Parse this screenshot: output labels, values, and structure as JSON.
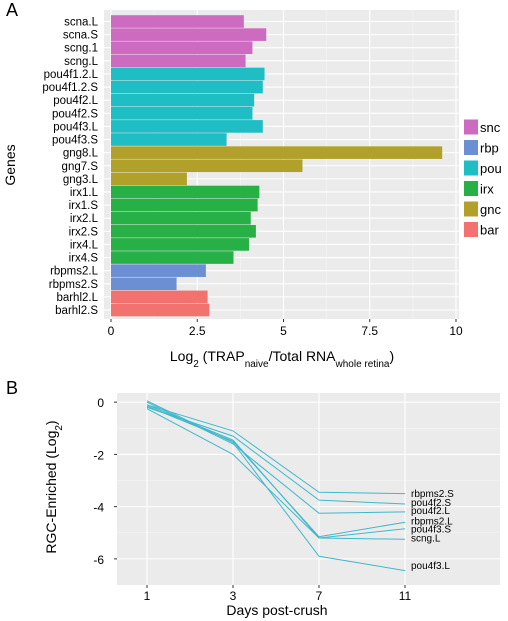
{
  "chart_data": [
    {
      "panel_label": "A",
      "type": "bar",
      "orientation": "horizontal",
      "ylabel": "Genes",
      "xlabel_parts": [
        {
          "text": "Log",
          "role": "normal"
        },
        {
          "text": "2",
          "role": "sub"
        },
        {
          "text": " (TRAP",
          "role": "normal"
        },
        {
          "text": "naive",
          "role": "sub"
        },
        {
          "text": "/Total RNA",
          "role": "normal"
        },
        {
          "text": "whole retina",
          "role": "sub"
        },
        {
          "text": ")",
          "role": "normal"
        }
      ],
      "xlim": [
        0,
        10
      ],
      "xticks": [
        "0",
        "2.5",
        "5",
        "7.5",
        "10"
      ],
      "grid": true,
      "legend_position": "right",
      "groups": [
        {
          "name": "snc",
          "color": "#CC6BC0"
        },
        {
          "name": "rbp",
          "color": "#6C8FD3"
        },
        {
          "name": "pou",
          "color": "#1FBDC4"
        },
        {
          "name": "irx",
          "color": "#27B045"
        },
        {
          "name": "gnc",
          "color": "#B1A12A"
        },
        {
          "name": "bar",
          "color": "#F2726F"
        }
      ],
      "bars": [
        {
          "gene": "scna.L",
          "value": 3.85,
          "group": "snc"
        },
        {
          "gene": "scna.S",
          "value": 4.5,
          "group": "snc"
        },
        {
          "gene": "scng.1",
          "value": 4.1,
          "group": "snc"
        },
        {
          "gene": "scng.L",
          "value": 3.9,
          "group": "snc"
        },
        {
          "gene": "pou4f1.2.L",
          "value": 4.45,
          "group": "pou"
        },
        {
          "gene": "pou4f1.2.S",
          "value": 4.4,
          "group": "pou"
        },
        {
          "gene": "pou4f2.L",
          "value": 4.15,
          "group": "pou"
        },
        {
          "gene": "pou4f2.S",
          "value": 4.1,
          "group": "pou"
        },
        {
          "gene": "pou4f3.L",
          "value": 4.4,
          "group": "pou"
        },
        {
          "gene": "pou4f3.S",
          "value": 3.35,
          "group": "pou"
        },
        {
          "gene": "gng8.L",
          "value": 9.6,
          "group": "gnc"
        },
        {
          "gene": "gng7.S",
          "value": 5.55,
          "group": "gnc"
        },
        {
          "gene": "gng3.L",
          "value": 2.2,
          "group": "gnc"
        },
        {
          "gene": "irx1.L",
          "value": 4.3,
          "group": "irx"
        },
        {
          "gene": "irx1.S",
          "value": 4.25,
          "group": "irx"
        },
        {
          "gene": "irx2.L",
          "value": 4.05,
          "group": "irx"
        },
        {
          "gene": "irx2.S",
          "value": 4.2,
          "group": "irx"
        },
        {
          "gene": "irx4.L",
          "value": 4.0,
          "group": "irx"
        },
        {
          "gene": "irx4.S",
          "value": 3.55,
          "group": "irx"
        },
        {
          "gene": "rbpms2.L",
          "value": 2.75,
          "group": "rbp"
        },
        {
          "gene": "rbpms2.S",
          "value": 1.9,
          "group": "rbp"
        },
        {
          "gene": "barhl2.L",
          "value": 2.8,
          "group": "bar"
        },
        {
          "gene": "barhl2.S",
          "value": 2.85,
          "group": "bar"
        }
      ]
    },
    {
      "panel_label": "B",
      "type": "line",
      "ylabel_parts": [
        {
          "text": "RGC-Enriched (Log",
          "role": "normal"
        },
        {
          "text": "2",
          "role": "sub"
        },
        {
          "text": ")",
          "role": "normal"
        }
      ],
      "xlabel": "Days post-crush",
      "categories": [
        "1",
        "3",
        "7",
        "11"
      ],
      "ylim": [
        -7,
        0.35
      ],
      "yticks": [
        0,
        -2,
        -4,
        -6
      ],
      "yticklabels": [
        "0",
        "-2",
        "-4",
        "-6"
      ],
      "grid": true,
      "line_color": "#3FB8CC",
      "series": [
        {
          "name": "rbpms2.S",
          "values": [
            -0.1,
            -1.1,
            -3.45,
            -3.5
          ]
        },
        {
          "name": "pou4f2.S",
          "values": [
            -0.2,
            -1.3,
            -3.75,
            -3.9
          ]
        },
        {
          "name": "pou4f2.L",
          "values": [
            0.0,
            -1.6,
            -4.25,
            -4.2
          ]
        },
        {
          "name": "rbpms2.L",
          "values": [
            -0.15,
            -1.5,
            -5.15,
            -4.6
          ]
        },
        {
          "name": "pou4f3.S",
          "values": [
            -0.1,
            -1.45,
            -5.2,
            -4.85
          ]
        },
        {
          "name": "scng.L",
          "values": [
            -0.25,
            -2.0,
            -5.2,
            -5.25
          ]
        },
        {
          "name": "pou4f3.L",
          "values": [
            0.05,
            -1.55,
            -5.9,
            -6.45
          ]
        }
      ],
      "end_labels": [
        {
          "text": "rbpms2.S",
          "y": -3.5
        },
        {
          "text": "pou4f2.S",
          "y": -3.85
        },
        {
          "text": "pou4f2.L",
          "y": -4.15
        },
        {
          "text": "rbpms2.L",
          "y": -4.55
        },
        {
          "text": "pou4f3.S",
          "y": -4.85
        },
        {
          "text": "scng.L",
          "y": -5.2
        },
        {
          "text": "pou4f3.L",
          "y": -6.25
        }
      ]
    }
  ]
}
